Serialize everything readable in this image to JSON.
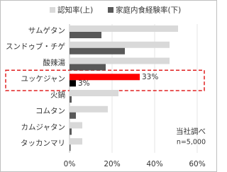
{
  "chart_data": {
    "type": "hbar",
    "categories": [
      "サムゲタン",
      "スンドゥブ・チゲ",
      "酸辣湯",
      "ユッケジャン",
      "火鍋",
      "コムタン",
      "カムジャタン",
      "タッカンマリ"
    ],
    "series": [
      {
        "name": "認知率(上)",
        "color": "#d9d9d9",
        "highlight_color": "#ff0000",
        "values": [
          51,
          47,
          47,
          33,
          23,
          18,
          6,
          6
        ],
        "value_labels": [
          null,
          null,
          null,
          "33%",
          null,
          null,
          null,
          null
        ]
      },
      {
        "name": "家庭内食経験率(下)",
        "color": "#595959",
        "highlight_color": "#000000",
        "values": [
          15,
          26,
          17,
          3,
          1,
          3,
          1,
          0.5
        ],
        "value_labels": [
          null,
          null,
          null,
          "3%",
          null,
          null,
          null,
          null
        ]
      }
    ],
    "highlight_index": 3,
    "xlim": [
      0,
      60
    ],
    "xticks": [
      {
        "value": 0,
        "label": "0%"
      },
      {
        "value": 20,
        "label": "20%"
      },
      {
        "value": 40,
        "label": "40%"
      },
      {
        "value": 60,
        "label": "60%"
      }
    ],
    "grid": true,
    "annotation": [
      "当社調べ",
      "n=5,000"
    ]
  }
}
